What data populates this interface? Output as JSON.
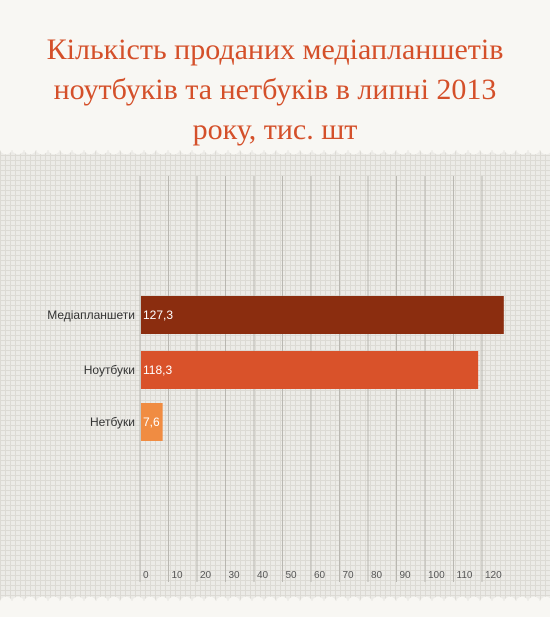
{
  "header": {
    "title_lines": [
      "Кількість проданих медіапланшетів",
      "ноутбуків та нетбуків в липні 2013",
      "року, тис. шт"
    ]
  },
  "chart_data": {
    "type": "bar",
    "orientation": "horizontal",
    "title": "Кількість проданих медіапланшетів ноутбуків та нетбуків в липні 2013 року, тис. шт",
    "categories": [
      "Медіапланшети",
      "Ноутбуки",
      "Нетбуки"
    ],
    "values": [
      127.3,
      118.3,
      7.6
    ],
    "value_labels": [
      "127,3",
      "118,3",
      "7,6"
    ],
    "colors": [
      "#8b2d0f",
      "#d9522a",
      "#f08c42"
    ],
    "xlim": [
      0,
      125
    ],
    "xticks": [
      "0",
      "10",
      "20",
      "30",
      "40",
      "50",
      "60",
      "70",
      "80",
      "90",
      "100",
      "110",
      "120"
    ],
    "xlabel": "",
    "ylabel": "",
    "grid": true,
    "legend": "none"
  }
}
